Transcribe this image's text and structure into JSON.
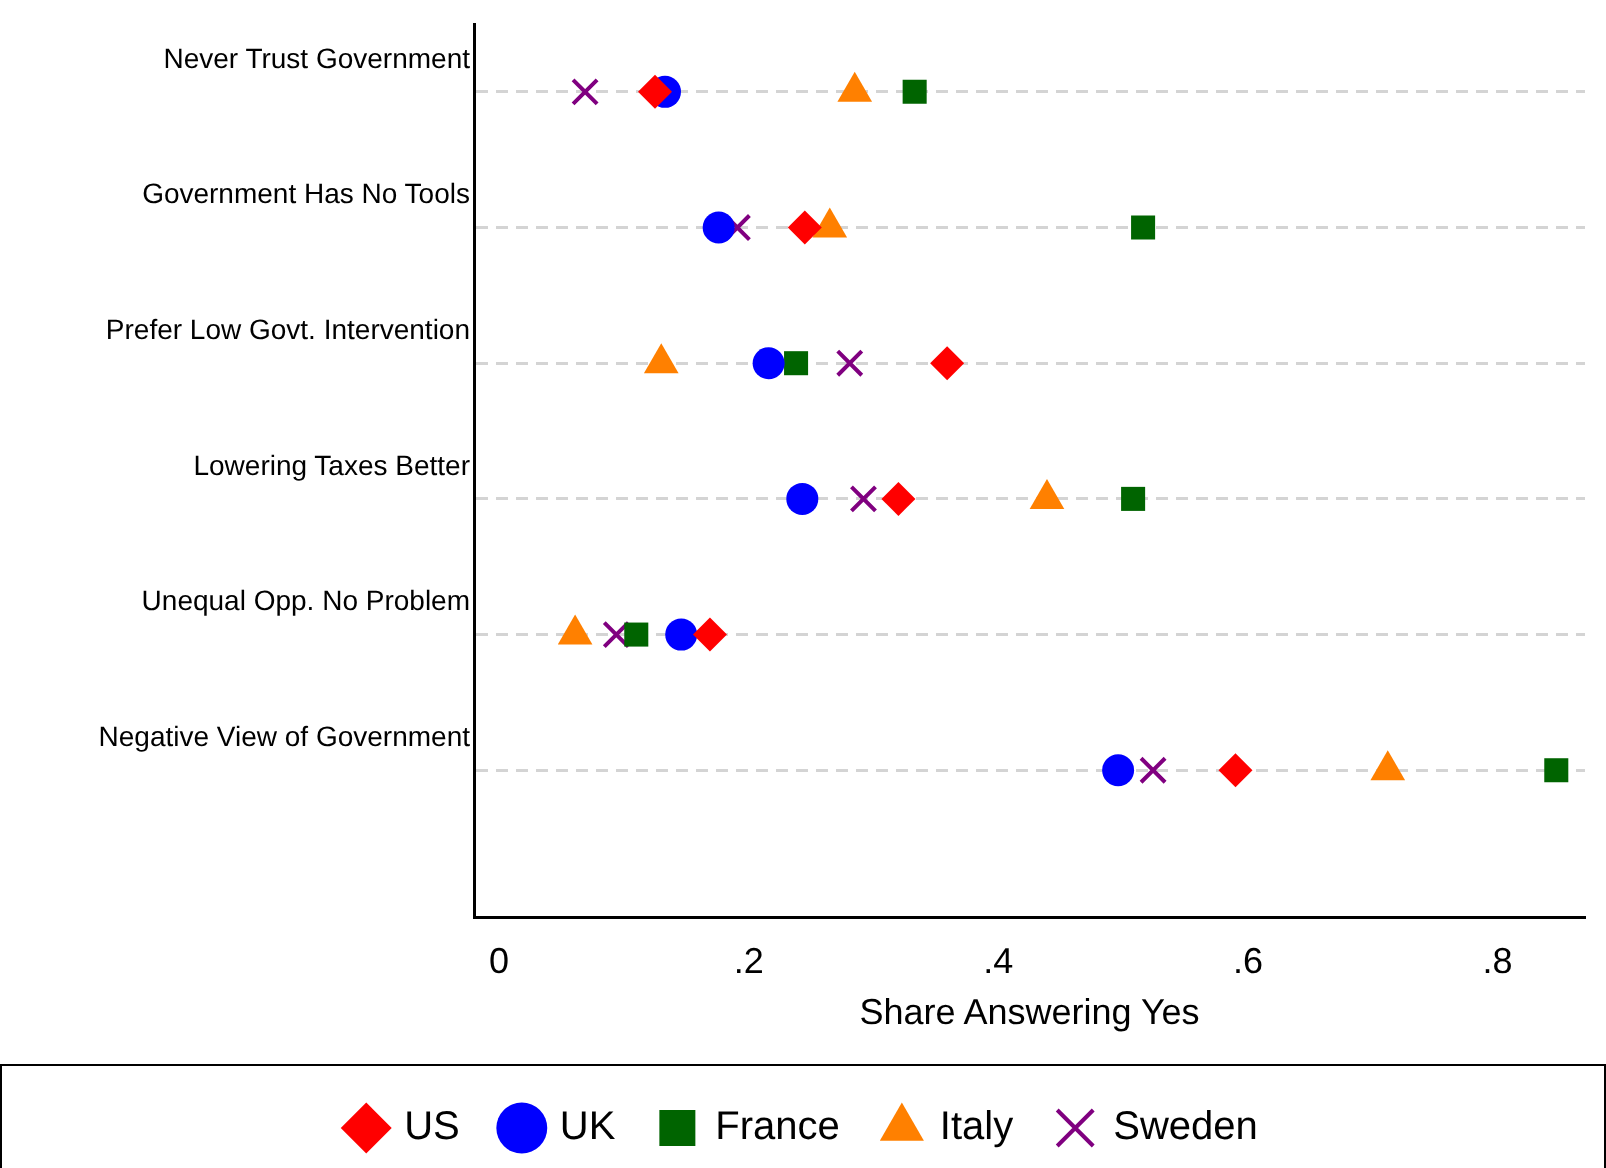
{
  "chart_data": {
    "type": "scatter",
    "xlabel": "Share Answering Yes",
    "categories": [
      "Never Trust Government",
      "Government Has No Tools",
      "Prefer Low Govt. Intervention",
      "Lowering Taxes Better",
      "Unequal Opp. No Problem",
      "Negative View of Government"
    ],
    "orientation": "horizontal",
    "xlim": [
      -0.02,
      0.87
    ],
    "xticks": [
      {
        "value": 0,
        "label": "0"
      },
      {
        "value": 0.2,
        "label": ".2"
      },
      {
        "value": 0.4,
        "label": ".4"
      },
      {
        "value": 0.6,
        "label": ".6"
      },
      {
        "value": 0.8,
        "label": ".8"
      }
    ],
    "grid": "y",
    "legend": "bottom",
    "series": [
      {
        "name": "US",
        "color": "#ff0000",
        "marker": "diamond",
        "values": [
          0.125,
          0.245,
          0.359,
          0.32,
          0.169,
          0.59
        ]
      },
      {
        "name": "UK",
        "color": "#0000ff",
        "marker": "circle",
        "values": [
          0.133,
          0.176,
          0.216,
          0.243,
          0.146,
          0.496
        ]
      },
      {
        "name": "France",
        "color": "#006400",
        "marker": "square",
        "values": [
          0.333,
          0.516,
          0.238,
          0.508,
          0.11,
          0.847
        ]
      },
      {
        "name": "Italy",
        "color": "#ff8000",
        "marker": "triangle",
        "values": [
          0.285,
          0.265,
          0.13,
          0.439,
          0.061,
          0.712
        ]
      },
      {
        "name": "Sweden",
        "color": "#800080",
        "marker": "cross",
        "values": [
          0.069,
          0.191,
          0.281,
          0.292,
          0.094,
          0.524
        ]
      }
    ]
  }
}
